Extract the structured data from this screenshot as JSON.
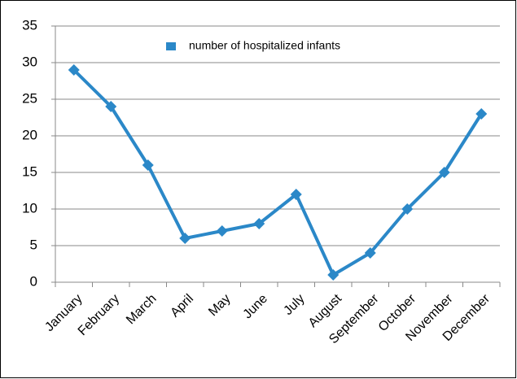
{
  "chart_data": {
    "type": "line",
    "categories": [
      "January",
      "February",
      "March",
      "April",
      "May",
      "June",
      "July",
      "August",
      "September",
      "October",
      "November",
      "December"
    ],
    "series": [
      {
        "name": "number of hospitalized infants",
        "color": "#2b88c8",
        "values": [
          29,
          24,
          16,
          6,
          7,
          8,
          12,
          1,
          4,
          10,
          15,
          23
        ]
      }
    ],
    "ylim": [
      0,
      35
    ],
    "yticks": [
      0,
      5,
      10,
      15,
      20,
      25,
      30,
      35
    ],
    "grid": true,
    "legend": "top",
    "marker": "diamond"
  }
}
